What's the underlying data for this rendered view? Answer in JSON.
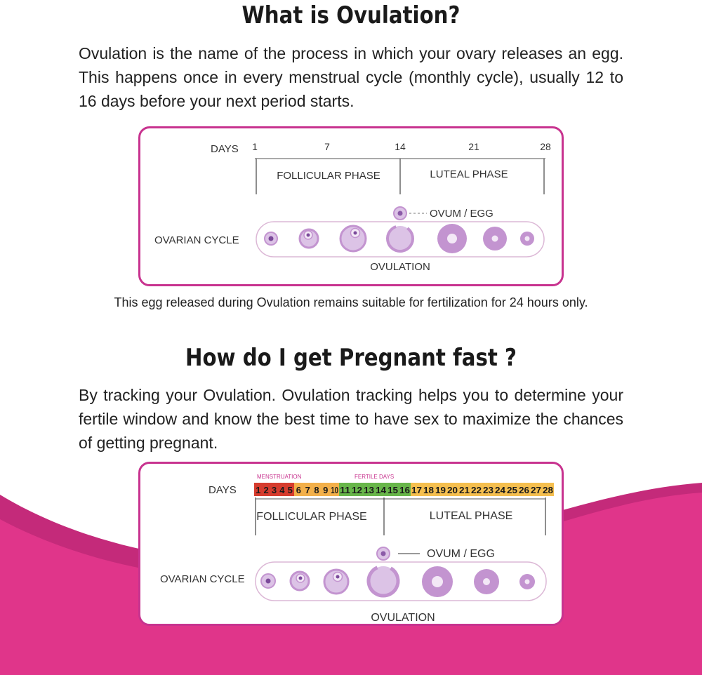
{
  "section1": {
    "heading": "What is Ovulation?",
    "paragraph": "Ovulation is the name of the process in which your ovary releases an egg. This happens once in every menstrual cycle (monthly cycle), usually 12 to 16 days before your next period starts.",
    "note": "This egg released during Ovulation remains suitable for fertilization for 24 hours only."
  },
  "diagram1": {
    "days_label": "DAYS",
    "ticks": [
      "1",
      "7",
      "14",
      "21",
      "28"
    ],
    "follicular_label": "FOLLICULAR PHASE",
    "luteal_label": "LUTEAL PHASE",
    "ovum_label": "OVUM / EGG",
    "ovarian_label": "OVARIAN CYCLE",
    "ovulation_label": "OVULATION"
  },
  "section2": {
    "heading": "How do I get Pregnant fast ?",
    "paragraph": "By tracking your Ovulation. Ovulation tracking helps you to determine your fertile window and know the best time to have sex to maximize the chances of getting pregnant."
  },
  "diagram2": {
    "menstruation_label": "MENSTRUATION",
    "fertile_label": "FERTILE DAYS",
    "days_label": "DAYS",
    "days": [
      "1",
      "2",
      "3",
      "4",
      "5",
      "6",
      "7",
      "8",
      "9",
      "10",
      "11",
      "12",
      "13",
      "14",
      "15",
      "16",
      "17",
      "18",
      "19",
      "20",
      "21",
      "22",
      "23",
      "24",
      "25",
      "26",
      "27",
      "28"
    ],
    "follicular_label": "FOLLICULAR PHASE",
    "luteal_label": "LUTEAL PHASE",
    "ovum_label": "OVUM / EGG",
    "ovarian_label": "OVARIAN CYCLE",
    "ovulation_label": "OVULATION"
  },
  "colors": {
    "accent": "#c8338f",
    "wave": "#e0358a",
    "wave_dark": "#c42a7a",
    "follicle": "#c394d0",
    "follicle_light": "#dcc3e6",
    "menstruation": "#d63c2e",
    "pre_fertile": "#f3b04a",
    "fertile": "#68b64a",
    "post_fertile": "#f5bf4f"
  }
}
